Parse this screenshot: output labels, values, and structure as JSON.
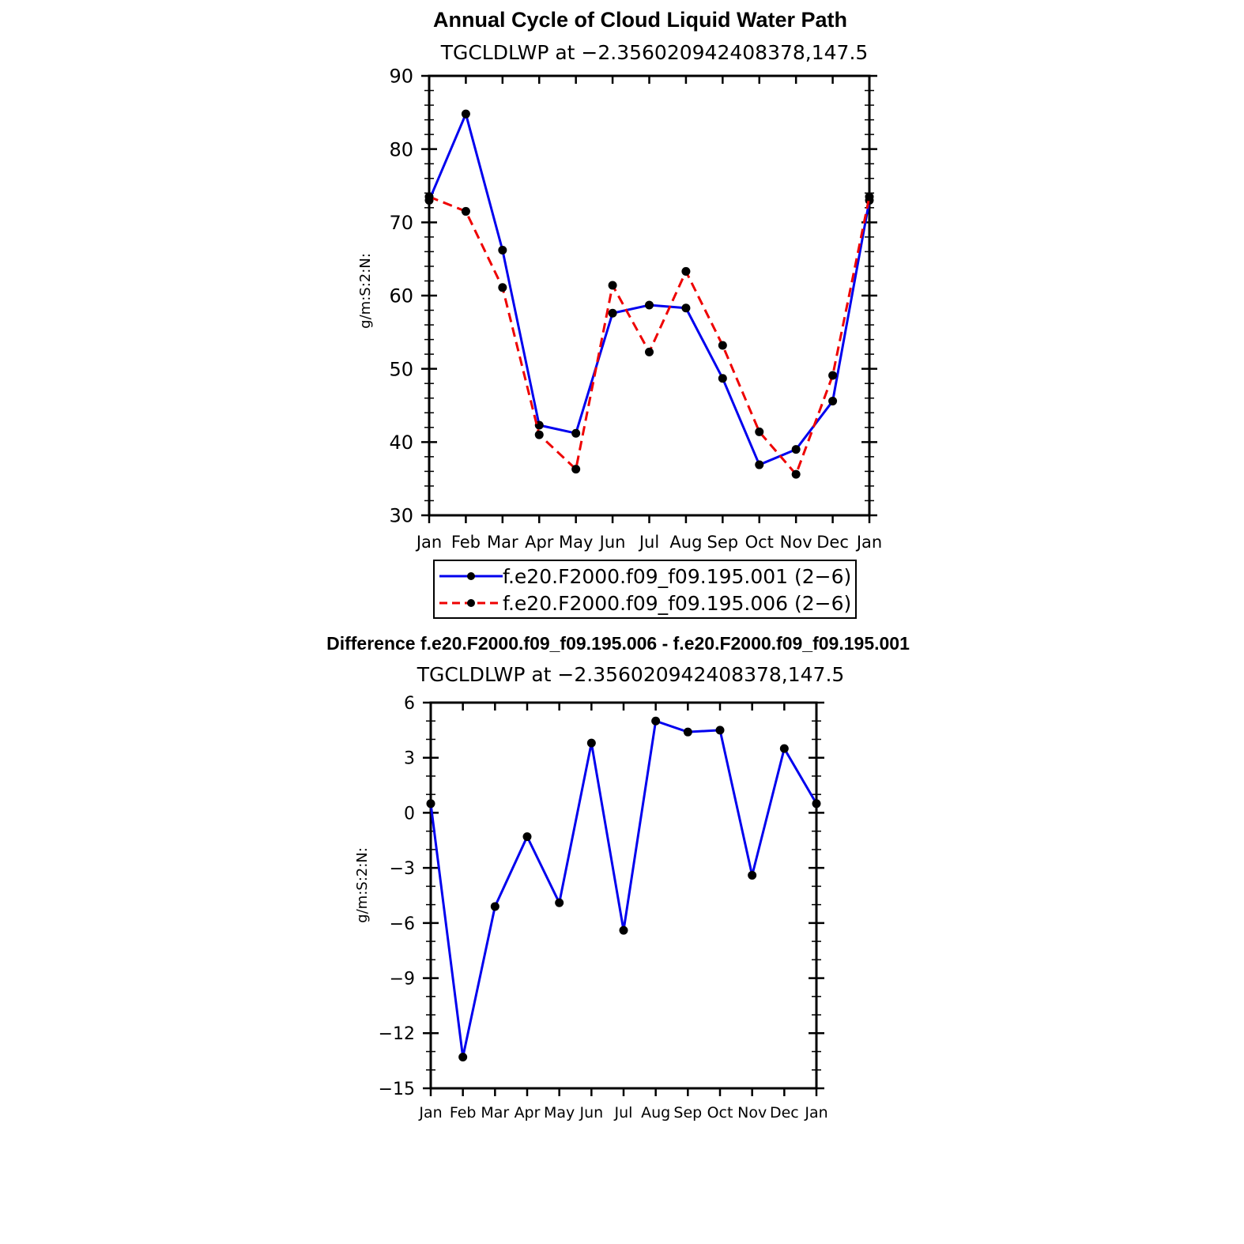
{
  "chart_data": [
    {
      "type": "line",
      "title": "Annual Cycle of Cloud Liquid Water Path",
      "subtitle": "TGCLDLWP  at  −2.356020942408378,147.5",
      "ylabel": "g/m:S:2:N:",
      "ylim": [
        30,
        90
      ],
      "yticks": [
        "30",
        "40",
        "50",
        "60",
        "70",
        "80",
        "90"
      ],
      "categories": [
        "Jan",
        "Feb",
        "Mar",
        "Apr",
        "May",
        "Jun",
        "Jul",
        "Aug",
        "Sep",
        "Oct",
        "Nov",
        "Dec",
        "Jan"
      ],
      "series": [
        {
          "name": "f.e20.F2000.f09_f09.195.001 (2−6)",
          "color": "#0000ee",
          "dash": "solid",
          "values": [
            73.0,
            84.8,
            66.2,
            42.3,
            41.2,
            57.6,
            58.7,
            58.3,
            48.7,
            36.9,
            39.0,
            45.6,
            73.0
          ]
        },
        {
          "name": "f.e20.F2000.f09_f09.195.006 (2−6)",
          "color": "#ee0000",
          "dash": "dashed",
          "values": [
            73.5,
            71.5,
            61.1,
            41.0,
            36.3,
            61.4,
            52.3,
            63.3,
            53.2,
            41.4,
            35.6,
            49.1,
            73.5
          ]
        }
      ]
    },
    {
      "type": "line",
      "title": "Difference f.e20.F2000.f09_f09.195.006 - f.e20.F2000.f09_f09.195.001",
      "subtitle": "TGCLDLWP  at  −2.356020942408378,147.5",
      "ylabel": "g/m:S:2:N:",
      "ylim": [
        -15,
        6
      ],
      "yticks": [
        "−15",
        "−12",
        "−9",
        "−6",
        "−3",
        "0",
        "3",
        "6"
      ],
      "categories": [
        "Jan",
        "Feb",
        "Mar",
        "Apr",
        "May",
        "Jun",
        "Jul",
        "Aug",
        "Sep",
        "Oct",
        "Nov",
        "Dec",
        "Jan"
      ],
      "series": [
        {
          "name": "difference",
          "color": "#0000ee",
          "dash": "solid",
          "values": [
            0.5,
            -13.3,
            -5.1,
            -1.3,
            -4.9,
            3.8,
            -6.4,
            5.0,
            4.4,
            4.5,
            -3.4,
            3.5,
            0.5
          ]
        }
      ]
    }
  ]
}
